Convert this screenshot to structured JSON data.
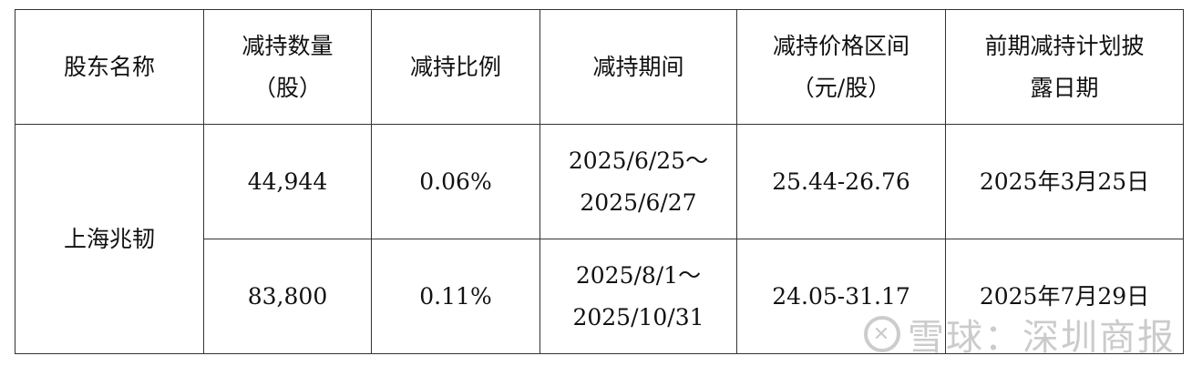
{
  "table": {
    "headers": [
      [
        "股东名称"
      ],
      [
        "减持数量",
        "（股）"
      ],
      [
        "减持比例"
      ],
      [
        "减持期间"
      ],
      [
        "减持价格区间",
        "（元/股）"
      ],
      [
        "前期减持计划披",
        "露日期"
      ]
    ],
    "shareholder": "上海兆韧",
    "rows": [
      {
        "quantity": "44,944",
        "ratio": "0.06%",
        "period": [
          "2025/6/25～",
          "2025/6/27"
        ],
        "price_range": "25.44-26.76",
        "disclosure_date": "2025年3月25日"
      },
      {
        "quantity": "83,800",
        "ratio": "0.11%",
        "period": [
          "2025/8/1～",
          "2025/10/31"
        ],
        "price_range": "24.05-31.17",
        "disclosure_date": "2025年7月29日"
      }
    ]
  },
  "watermark": {
    "text": "雪球：深圳商报",
    "icon": "xueqiu-logo-icon"
  }
}
